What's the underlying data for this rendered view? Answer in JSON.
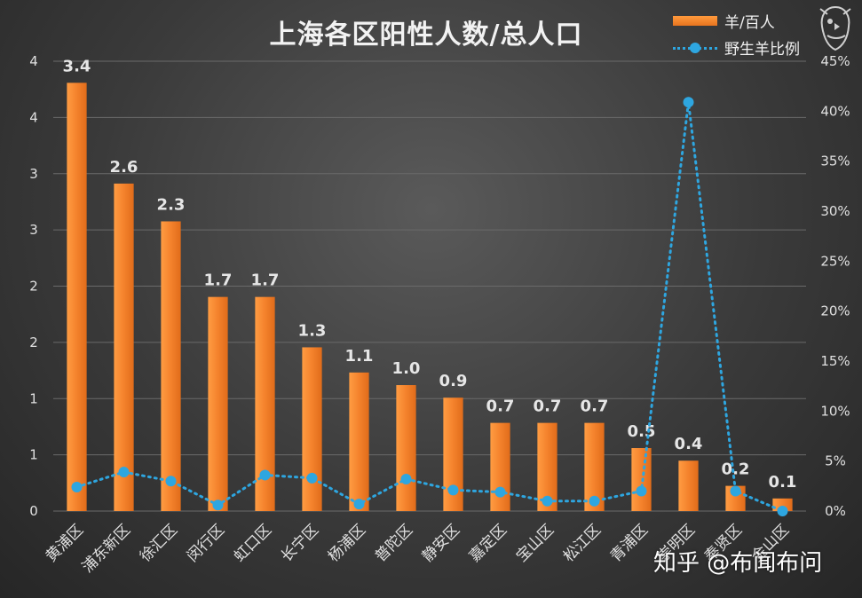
{
  "chart_data": {
    "type": "bar",
    "title": "上海各区阳性人数/总人口",
    "categories": [
      "黄浦区",
      "浦东新区",
      "徐汇区",
      "闵行区",
      "虹口区",
      "长宁区",
      "杨浦区",
      "普陀区",
      "静安区",
      "嘉定区",
      "宝山区",
      "松江区",
      "青浦区",
      "崇明区",
      "奉贤区",
      "金山区"
    ],
    "series": [
      {
        "name": "羊/百人",
        "type": "bar",
        "axis": "left",
        "values": [
          3.4,
          2.6,
          2.3,
          1.7,
          1.7,
          1.3,
          1.1,
          1.0,
          0.9,
          0.7,
          0.7,
          0.7,
          0.5,
          0.4,
          0.2,
          0.1
        ],
        "color": "#f07f2a"
      },
      {
        "name": "野生羊比例",
        "type": "line",
        "axis": "right",
        "values": [
          2.4,
          3.9,
          3.0,
          0.6,
          3.6,
          3.3,
          0.7,
          3.2,
          2.1,
          1.9,
          1.0,
          1.0,
          2.0,
          40.9,
          2.0,
          0.0
        ],
        "color": "#2ea6e0"
      }
    ],
    "y_left": {
      "ylim": [
        0,
        4
      ],
      "ticks": [
        0,
        0.5,
        1,
        1.5,
        2,
        2.5,
        3,
        3.5,
        4
      ],
      "tick_labels": [
        "0",
        "1",
        "1",
        "2",
        "2",
        "3",
        "3",
        "4",
        "4"
      ]
    },
    "y_right": {
      "ylim": [
        0,
        45
      ],
      "ticks": [
        0,
        5,
        10,
        15,
        20,
        25,
        30,
        35,
        40,
        45
      ],
      "tick_labels": [
        "0%",
        "5%",
        "10%",
        "15%",
        "20%",
        "25%",
        "30%",
        "35%",
        "40%",
        "45%"
      ]
    },
    "data_labels": [
      "3.4",
      "2.6",
      "2.3",
      "1.7",
      "1.7",
      "1.3",
      "1.1",
      "1.0",
      "0.9",
      "0.7",
      "0.7",
      "0.7",
      "0.5",
      "0.4",
      "0.2",
      "0.1"
    ],
    "grid": true,
    "legend_position": "top-right"
  },
  "watermark": "知乎 @布闻布问",
  "colors": {
    "bar": "#f07f2a",
    "line": "#2ea6e0",
    "grid": "#6a6a6a",
    "text": "#e0e0e0"
  },
  "icons": {
    "mascot": "bird-mascot-icon"
  }
}
